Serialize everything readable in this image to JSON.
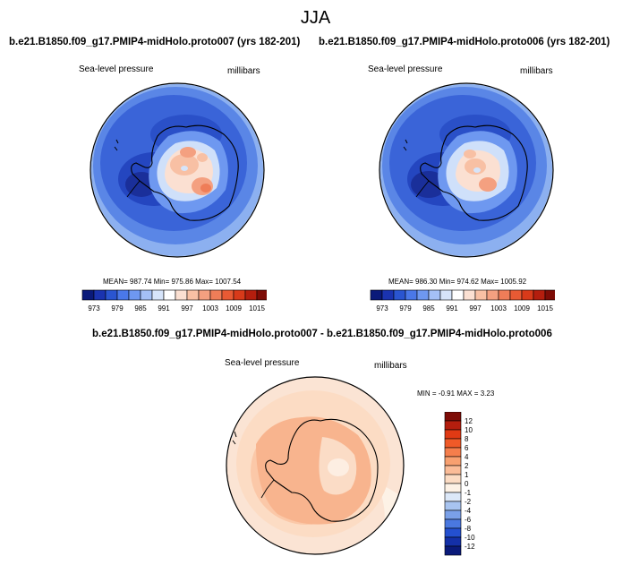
{
  "title": "JJA",
  "panels": [
    {
      "case_title": "b.e21.B1850.f09_g17.PMIP4-midHolo.proto007 (yrs 182-201)",
      "variable": "Sea-level pressure",
      "units": "millibars",
      "stats": "MEAN= 987.74   Min= 975.86   Max= 1007.54"
    },
    {
      "case_title": "b.e21.B1850.f09_g17.PMIP4-midHolo.proto006 (yrs 182-201)",
      "variable": "Sea-level pressure",
      "units": "millibars",
      "stats": "MEAN= 986.30   Min= 974.62   Max= 1005.92"
    }
  ],
  "horizontal_colorbar": {
    "labels": [
      "973",
      "979",
      "985",
      "991",
      "997",
      "1003",
      "1009",
      "1015"
    ],
    "colors": [
      "#0a1a7a",
      "#1a33b0",
      "#2a55d0",
      "#4a78e8",
      "#6e98f0",
      "#a4c0f6",
      "#d6e4fa",
      "#ffffff",
      "#fbe0d2",
      "#f8c0a4",
      "#f4a080",
      "#ef7d58",
      "#e85a34",
      "#d83a1a",
      "#b41e0e",
      "#7e0c06"
    ]
  },
  "diff_panel": {
    "title": "b.e21.B1850.f09_g17.PMIP4-midHolo.proto007 - b.e21.B1850.f09_g17.PMIP4-midHolo.proto006",
    "variable": "Sea-level pressure",
    "units": "millibars",
    "stats": "MIN =  -0.91  MAX =   3.23"
  },
  "vertical_colorbar": {
    "labels": [
      "12",
      "10",
      "8",
      "6",
      "4",
      "2",
      "1",
      "0",
      "-1",
      "-2",
      "-4",
      "-6",
      "-8",
      "-10",
      "-12"
    ],
    "colors": [
      "#7e0c06",
      "#b41e0e",
      "#e03a14",
      "#f05a28",
      "#f57e4c",
      "#f8a070",
      "#fbbc98",
      "#fcdcc4",
      "#fdf2e6",
      "#dce8f8",
      "#a8c4f0",
      "#7aa0e8",
      "#4a78e0",
      "#2450d0",
      "#1430a8",
      "#0a1a7a"
    ]
  }
}
